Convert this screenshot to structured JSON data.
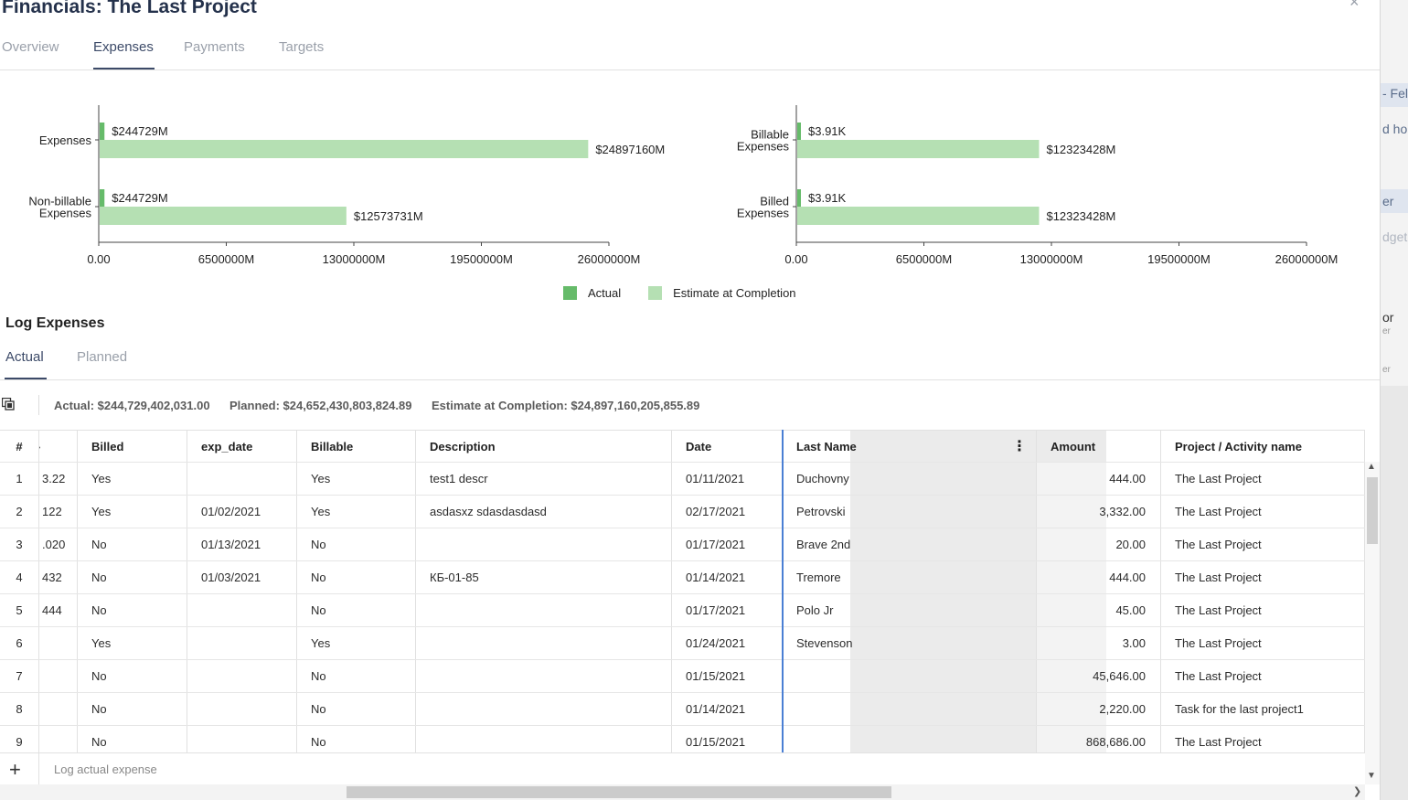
{
  "window": {
    "title": "Financials: The Last Project",
    "close_glyph": "×"
  },
  "tabs": [
    {
      "label": "Overview"
    },
    {
      "label": "Expenses"
    },
    {
      "label": "Payments"
    },
    {
      "label": "Targets"
    }
  ],
  "colors": {
    "actual": "#66bb6a",
    "estimate": "#b5e0b3",
    "accent": "#3c4a68",
    "active_column": "#4a7fd4"
  },
  "chart_data": [
    {
      "type": "bar",
      "orientation": "horizontal",
      "categories": [
        [
          "Expenses"
        ],
        [
          "Non-billable",
          "Expenses"
        ]
      ],
      "series": [
        {
          "name": "Actual",
          "values": [
            244729,
            244729
          ],
          "labels": [
            "$244729M",
            "$244729M"
          ]
        },
        {
          "name": "Estimate at Completion",
          "values": [
            24897160,
            12573731
          ],
          "labels": [
            "$24897160M",
            "$12573731M"
          ]
        }
      ],
      "xlim": [
        0,
        26000000
      ],
      "ticks": [
        0,
        6500000,
        13000000,
        19500000,
        26000000
      ],
      "tick_labels": [
        "0.00",
        "6500000M",
        "13000000M",
        "19500000M",
        "26000000M"
      ],
      "legend": "bottom"
    },
    {
      "type": "bar",
      "orientation": "horizontal",
      "categories": [
        [
          "Billable",
          "Expenses"
        ],
        [
          "Billed",
          "Expenses"
        ]
      ],
      "series": [
        {
          "name": "Actual",
          "values": [
            3910,
            3910
          ],
          "labels": [
            "$3.91K",
            "$3.91K"
          ]
        },
        {
          "name": "Estimate at Completion",
          "values": [
            12323428,
            12323428
          ],
          "labels": [
            "$12323428M",
            "$12323428M"
          ]
        }
      ],
      "xlim": [
        0,
        26000000
      ],
      "ticks": [
        0,
        6500000,
        13000000,
        19500000,
        26000000
      ],
      "tick_labels": [
        "0.00",
        "6500000M",
        "13000000M",
        "19500000M",
        "26000000M"
      ],
      "legend": "bottom"
    }
  ],
  "legend": {
    "actual": "Actual",
    "estimate": "Estimate at Completion"
  },
  "log": {
    "title": "Log Expenses",
    "subtabs": [
      "Actual",
      "Planned"
    ],
    "summary": {
      "actual": "Actual: $244,729,402,031.00",
      "planned": "Planned: $24,652,430,803,824.89",
      "estimate": "Estimate at Completion: $24,897,160,205,855.89"
    },
    "columns": [
      "#",
      "​",
      "Billed",
      "exp_date",
      "Billable",
      "Description",
      "Date",
      "Last Name",
      "Amount",
      "Project / Activity name"
    ],
    "rows": [
      [
        "1",
        "3.22",
        "Yes",
        "",
        "Yes",
        "test1 descr",
        "01/11/2021",
        "Duchovny",
        "444.00",
        "The Last Project"
      ],
      [
        "2",
        "122",
        "Yes",
        "01/02/2021",
        "Yes",
        "asdasxz sdasdasdasd",
        "02/17/2021",
        "Petrovski",
        "3,332.00",
        "The Last Project"
      ],
      [
        "3",
        ".020",
        "No",
        "01/13/2021",
        "No",
        "",
        "01/17/2021",
        "Brave 2nd",
        "20.00",
        "The Last Project"
      ],
      [
        "4",
        "432",
        "No",
        "01/03/2021",
        "No",
        "КБ-01-85",
        "01/14/2021",
        "Tremore",
        "444.00",
        "The Last Project"
      ],
      [
        "5",
        "444",
        "No",
        "",
        "No",
        "",
        "01/17/2021",
        "Polo Jr",
        "45.00",
        "The Last Project"
      ],
      [
        "6",
        "",
        "Yes",
        "",
        "Yes",
        "",
        "01/24/2021",
        "Stevenson",
        "3.00",
        "The Last Project"
      ],
      [
        "7",
        "",
        "No",
        "",
        "No",
        "",
        "01/15/2021",
        "",
        "45,646.00",
        "The Last Project"
      ],
      [
        "8",
        "",
        "No",
        "",
        "No",
        "",
        "01/14/2021",
        "",
        "2,220.00",
        "Task for the last project1"
      ],
      [
        "9",
        "",
        "No",
        "",
        "No",
        "",
        "01/15/2021",
        "",
        "868,686.00",
        "The Last Project"
      ]
    ],
    "add_placeholder": "Log actual expense"
  },
  "background_fragments": [
    "- Fel",
    "d ho",
    "er",
    "dget",
    "or",
    "er",
    "er"
  ]
}
